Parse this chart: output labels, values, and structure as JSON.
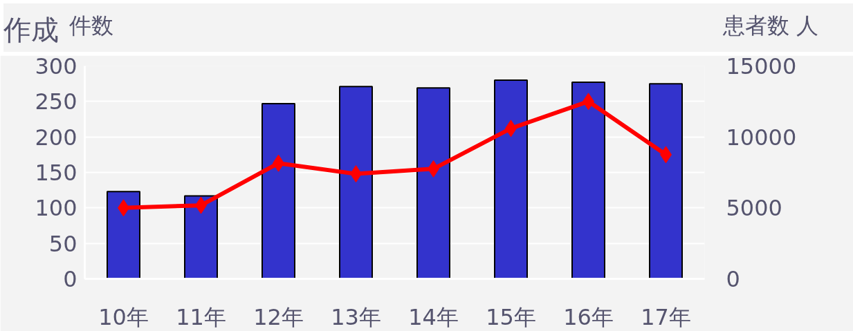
{
  "chart_data": {
    "type": "bar",
    "title": "作成",
    "ylabel": "件数",
    "y2label": "患者数 人",
    "categories": [
      "10年",
      "11年",
      "12年",
      "13年",
      "14年",
      "15年",
      "16年",
      "17年"
    ],
    "series": [
      {
        "type": "bar",
        "color": "#3333cc",
        "values": [
          123,
          117,
          247,
          271,
          269,
          280,
          277,
          275
        ]
      },
      {
        "type": "line",
        "axis": "y2",
        "color": "#ff0000",
        "marker": "diamond",
        "values": [
          5000,
          5180,
          8150,
          7400,
          7750,
          10600,
          12500,
          8750
        ]
      }
    ],
    "ylim": [
      0,
      300
    ],
    "yticks": [
      0,
      50,
      100,
      150,
      200,
      250,
      300
    ],
    "y2lim": [
      0,
      15000
    ],
    "y2ticks": [
      0,
      5000,
      10000,
      15000
    ],
    "grid": "y"
  }
}
